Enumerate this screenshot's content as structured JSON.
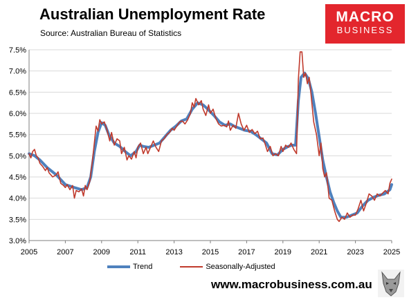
{
  "header": {
    "title": "Australian Unemployment Rate",
    "subtitle": "Source: Australian Bureau of Statistics"
  },
  "logo": {
    "line1": "MACRO",
    "line2": "BUSINESS",
    "color": "#e3262d"
  },
  "footer": {
    "url": "www.macrobusiness.com.au"
  },
  "chart_data": {
    "type": "line",
    "xlabel": "",
    "ylabel": "",
    "xlim": [
      2005,
      2025
    ],
    "ylim": [
      3.0,
      7.5
    ],
    "x_ticks": [
      "2005",
      "2007",
      "2009",
      "2011",
      "2013",
      "2015",
      "2017",
      "2019",
      "2021",
      "2023",
      "2025"
    ],
    "y_ticks": [
      "3.0%",
      "3.5%",
      "4.0%",
      "4.5%",
      "5.0%",
      "5.5%",
      "6.0%",
      "6.5%",
      "7.0%",
      "7.5%"
    ],
    "grid": "horizontal",
    "legend_position": "bottom",
    "series": [
      {
        "name": "Trend",
        "color": "#4f81bd",
        "points": [
          [
            2005.0,
            5.05
          ],
          [
            2005.3,
            5.0
          ],
          [
            2005.6,
            4.9
          ],
          [
            2006.0,
            4.72
          ],
          [
            2006.5,
            4.55
          ],
          [
            2007.0,
            4.32
          ],
          [
            2007.5,
            4.25
          ],
          [
            2007.9,
            4.2
          ],
          [
            2008.2,
            4.25
          ],
          [
            2008.4,
            4.5
          ],
          [
            2008.6,
            5.1
          ],
          [
            2008.8,
            5.55
          ],
          [
            2009.0,
            5.78
          ],
          [
            2009.2,
            5.72
          ],
          [
            2009.4,
            5.5
          ],
          [
            2009.7,
            5.3
          ],
          [
            2010.0,
            5.22
          ],
          [
            2010.3,
            5.1
          ],
          [
            2010.6,
            5.0
          ],
          [
            2010.9,
            5.1
          ],
          [
            2011.1,
            5.25
          ],
          [
            2011.3,
            5.22
          ],
          [
            2011.6,
            5.2
          ],
          [
            2011.9,
            5.25
          ],
          [
            2012.2,
            5.3
          ],
          [
            2012.5,
            5.45
          ],
          [
            2012.8,
            5.6
          ],
          [
            2013.1,
            5.7
          ],
          [
            2013.4,
            5.82
          ],
          [
            2013.7,
            5.87
          ],
          [
            2014.0,
            6.1
          ],
          [
            2014.3,
            6.25
          ],
          [
            2014.6,
            6.2
          ],
          [
            2014.9,
            6.08
          ],
          [
            2015.2,
            5.95
          ],
          [
            2015.5,
            5.8
          ],
          [
            2015.8,
            5.72
          ],
          [
            2016.1,
            5.75
          ],
          [
            2016.3,
            5.7
          ],
          [
            2016.6,
            5.65
          ],
          [
            2016.9,
            5.6
          ],
          [
            2017.2,
            5.58
          ],
          [
            2017.5,
            5.5
          ],
          [
            2017.8,
            5.4
          ],
          [
            2018.1,
            5.3
          ],
          [
            2018.4,
            5.05
          ],
          [
            2018.7,
            5.02
          ],
          [
            2019.0,
            5.15
          ],
          [
            2019.3,
            5.22
          ],
          [
            2019.5,
            5.25
          ],
          [
            2019.7,
            5.25
          ],
          [
            2019.85,
            6.3
          ],
          [
            2020.0,
            6.85
          ],
          [
            2020.2,
            6.95
          ],
          [
            2020.4,
            6.82
          ],
          [
            2020.6,
            6.5
          ],
          [
            2020.8,
            6.0
          ],
          [
            2021.0,
            5.45
          ],
          [
            2021.2,
            4.9
          ],
          [
            2021.4,
            4.5
          ],
          [
            2021.6,
            4.15
          ],
          [
            2021.8,
            3.9
          ],
          [
            2022.0,
            3.7
          ],
          [
            2022.2,
            3.55
          ],
          [
            2022.5,
            3.55
          ],
          [
            2022.8,
            3.6
          ],
          [
            2023.1,
            3.65
          ],
          [
            2023.4,
            3.82
          ],
          [
            2023.7,
            3.95
          ],
          [
            2024.0,
            4.02
          ],
          [
            2024.3,
            4.07
          ],
          [
            2024.6,
            4.1
          ],
          [
            2024.9,
            4.2
          ],
          [
            2025.0,
            4.32
          ]
        ]
      },
      {
        "name": "Seasonally-Adjusted",
        "color": "#c0392b",
        "points": [
          [
            2005.0,
            5.05
          ],
          [
            2005.1,
            4.95
          ],
          [
            2005.2,
            5.1
          ],
          [
            2005.3,
            5.15
          ],
          [
            2005.4,
            5.0
          ],
          [
            2005.5,
            4.95
          ],
          [
            2005.6,
            4.82
          ],
          [
            2005.75,
            4.75
          ],
          [
            2005.9,
            4.65
          ],
          [
            2006.0,
            4.72
          ],
          [
            2006.1,
            4.6
          ],
          [
            2006.3,
            4.5
          ],
          [
            2006.5,
            4.55
          ],
          [
            2006.6,
            4.62
          ],
          [
            2006.75,
            4.35
          ],
          [
            2006.9,
            4.3
          ],
          [
            2007.0,
            4.25
          ],
          [
            2007.1,
            4.32
          ],
          [
            2007.25,
            4.2
          ],
          [
            2007.4,
            4.3
          ],
          [
            2007.5,
            4.0
          ],
          [
            2007.6,
            4.18
          ],
          [
            2007.75,
            4.15
          ],
          [
            2007.9,
            4.22
          ],
          [
            2008.0,
            4.05
          ],
          [
            2008.1,
            4.3
          ],
          [
            2008.2,
            4.2
          ],
          [
            2008.35,
            4.4
          ],
          [
            2008.5,
            4.9
          ],
          [
            2008.6,
            5.3
          ],
          [
            2008.7,
            5.7
          ],
          [
            2008.8,
            5.58
          ],
          [
            2008.9,
            5.85
          ],
          [
            2009.0,
            5.75
          ],
          [
            2009.15,
            5.8
          ],
          [
            2009.3,
            5.6
          ],
          [
            2009.45,
            5.35
          ],
          [
            2009.55,
            5.55
          ],
          [
            2009.7,
            5.25
          ],
          [
            2009.85,
            5.4
          ],
          [
            2010.0,
            5.35
          ],
          [
            2010.1,
            5.05
          ],
          [
            2010.25,
            5.2
          ],
          [
            2010.4,
            4.9
          ],
          [
            2010.5,
            5.0
          ],
          [
            2010.65,
            4.92
          ],
          [
            2010.8,
            5.1
          ],
          [
            2010.9,
            4.95
          ],
          [
            2011.0,
            5.2
          ],
          [
            2011.15,
            5.3
          ],
          [
            2011.3,
            5.05
          ],
          [
            2011.45,
            5.2
          ],
          [
            2011.55,
            5.05
          ],
          [
            2011.7,
            5.2
          ],
          [
            2011.85,
            5.35
          ],
          [
            2012.0,
            5.2
          ],
          [
            2012.15,
            5.1
          ],
          [
            2012.3,
            5.35
          ],
          [
            2012.45,
            5.4
          ],
          [
            2012.6,
            5.5
          ],
          [
            2012.75,
            5.55
          ],
          [
            2012.9,
            5.65
          ],
          [
            2013.0,
            5.6
          ],
          [
            2013.15,
            5.7
          ],
          [
            2013.3,
            5.8
          ],
          [
            2013.45,
            5.82
          ],
          [
            2013.6,
            5.75
          ],
          [
            2013.75,
            5.85
          ],
          [
            2013.9,
            6.0
          ],
          [
            2014.0,
            6.25
          ],
          [
            2014.1,
            6.15
          ],
          [
            2014.2,
            6.35
          ],
          [
            2014.35,
            6.2
          ],
          [
            2014.5,
            6.3
          ],
          [
            2014.6,
            6.1
          ],
          [
            2014.75,
            5.95
          ],
          [
            2014.9,
            6.2
          ],
          [
            2015.0,
            6.0
          ],
          [
            2015.15,
            6.1
          ],
          [
            2015.3,
            5.88
          ],
          [
            2015.45,
            5.75
          ],
          [
            2015.6,
            5.7
          ],
          [
            2015.75,
            5.72
          ],
          [
            2015.9,
            5.68
          ],
          [
            2016.0,
            5.82
          ],
          [
            2016.1,
            5.6
          ],
          [
            2016.25,
            5.72
          ],
          [
            2016.4,
            5.65
          ],
          [
            2016.55,
            6.0
          ],
          [
            2016.7,
            5.75
          ],
          [
            2016.85,
            5.6
          ],
          [
            2017.0,
            5.72
          ],
          [
            2017.15,
            5.55
          ],
          [
            2017.3,
            5.62
          ],
          [
            2017.45,
            5.52
          ],
          [
            2017.6,
            5.58
          ],
          [
            2017.75,
            5.4
          ],
          [
            2017.9,
            5.42
          ],
          [
            2018.0,
            5.3
          ],
          [
            2018.15,
            5.1
          ],
          [
            2018.3,
            5.22
          ],
          [
            2018.45,
            5.0
          ],
          [
            2018.6,
            5.05
          ],
          [
            2018.75,
            5.0
          ],
          [
            2018.9,
            5.22
          ],
          [
            2019.0,
            5.1
          ],
          [
            2019.15,
            5.25
          ],
          [
            2019.3,
            5.2
          ],
          [
            2019.45,
            5.3
          ],
          [
            2019.6,
            5.15
          ],
          [
            2019.75,
            5.05
          ],
          [
            2019.85,
            6.8
          ],
          [
            2019.95,
            7.45
          ],
          [
            2020.05,
            7.45
          ],
          [
            2020.15,
            6.85
          ],
          [
            2020.25,
            6.95
          ],
          [
            2020.35,
            6.7
          ],
          [
            2020.45,
            6.85
          ],
          [
            2020.55,
            6.45
          ],
          [
            2020.7,
            5.8
          ],
          [
            2020.85,
            5.5
          ],
          [
            2021.0,
            5.0
          ],
          [
            2021.1,
            5.3
          ],
          [
            2021.2,
            4.7
          ],
          [
            2021.3,
            4.5
          ],
          [
            2021.4,
            4.6
          ],
          [
            2021.55,
            4.0
          ],
          [
            2021.7,
            3.95
          ],
          [
            2021.85,
            3.7
          ],
          [
            2022.0,
            3.5
          ],
          [
            2022.1,
            3.45
          ],
          [
            2022.25,
            3.55
          ],
          [
            2022.4,
            3.5
          ],
          [
            2022.55,
            3.65
          ],
          [
            2022.7,
            3.55
          ],
          [
            2022.85,
            3.6
          ],
          [
            2023.0,
            3.6
          ],
          [
            2023.15,
            3.75
          ],
          [
            2023.3,
            3.95
          ],
          [
            2023.45,
            3.7
          ],
          [
            2023.6,
            3.88
          ],
          [
            2023.75,
            4.1
          ],
          [
            2023.9,
            4.05
          ],
          [
            2024.05,
            3.95
          ],
          [
            2024.2,
            4.1
          ],
          [
            2024.35,
            4.05
          ],
          [
            2024.5,
            4.12
          ],
          [
            2024.65,
            4.18
          ],
          [
            2024.8,
            4.1
          ],
          [
            2024.9,
            4.35
          ],
          [
            2025.0,
            4.45
          ]
        ]
      }
    ]
  }
}
